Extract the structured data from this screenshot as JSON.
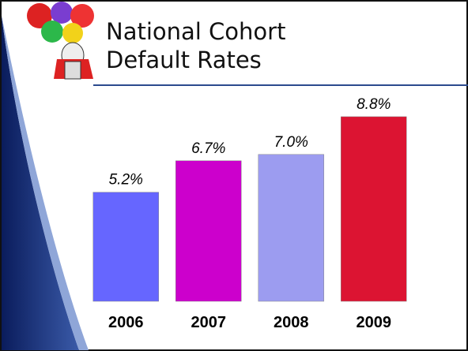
{
  "chart_data": {
    "type": "bar",
    "title": "National Cohort Default Rates",
    "categories": [
      "2006",
      "2007",
      "2008",
      "2009"
    ],
    "values": [
      5.2,
      6.7,
      7.0,
      8.8
    ],
    "value_labels": [
      "5.2%",
      "6.7%",
      "7.0%",
      "8.8%"
    ],
    "colors": [
      "#6666ff",
      "#cc00cc",
      "#9c9cf0",
      "#dc1432"
    ]
  }
}
